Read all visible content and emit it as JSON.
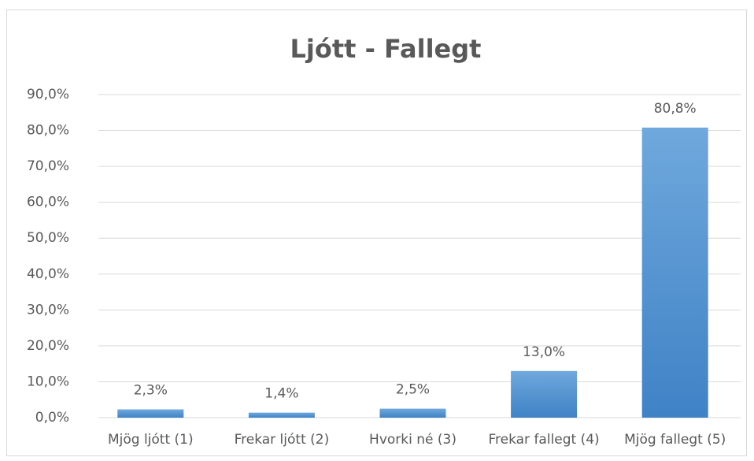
{
  "chart_data": {
    "type": "bar",
    "title": "Ljótt - Fallegt",
    "categories": [
      "Mjög ljótt (1)",
      "Frekar ljótt (2)",
      "Hvorki né (3)",
      "Frekar fallegt (4)",
      "Mjög fallegt (5)"
    ],
    "values": [
      2.3,
      1.4,
      2.5,
      13.0,
      80.8
    ],
    "value_labels": [
      "2,3%",
      "1,4%",
      "2,5%",
      "13,0%",
      "80,8%"
    ],
    "color": "#5b9bd5",
    "ylim": [
      0,
      90
    ],
    "yticks": [
      {
        "value": 0,
        "label": "0,0%"
      },
      {
        "value": 10,
        "label": "10,0%"
      },
      {
        "value": 20,
        "label": "20,0%"
      },
      {
        "value": 30,
        "label": "30,0%"
      },
      {
        "value": 40,
        "label": "40,0%"
      },
      {
        "value": 50,
        "label": "50,0%"
      },
      {
        "value": 60,
        "label": "60,0%"
      },
      {
        "value": 70,
        "label": "70,0%"
      },
      {
        "value": 80,
        "label": "80,0%"
      },
      {
        "value": 90,
        "label": "90,0%"
      }
    ],
    "grid": true
  }
}
